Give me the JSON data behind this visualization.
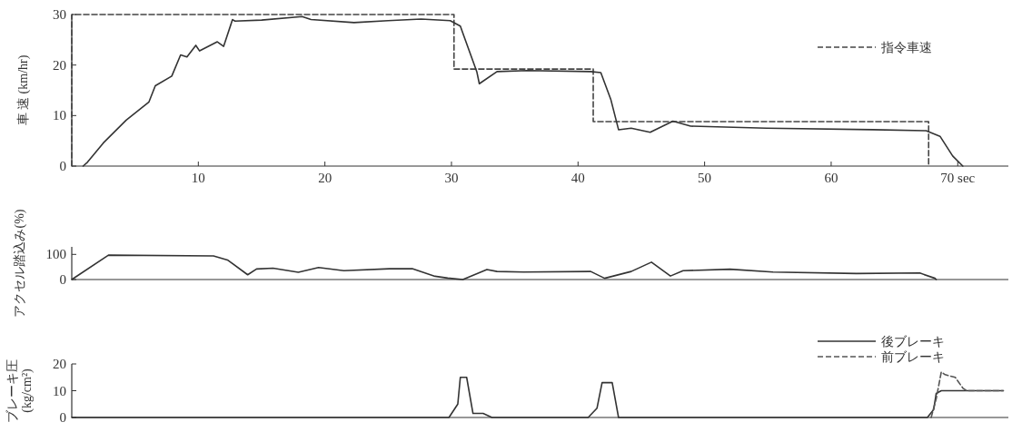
{
  "chart_data": [
    {
      "type": "line",
      "ylabel": "車 速 (km/hr)",
      "xlim": [
        0,
        74
      ],
      "ylim": [
        0,
        30
      ],
      "xticks": [
        10,
        20,
        30,
        40,
        50,
        60,
        {
          "value": 70,
          "label": "70 sec"
        }
      ],
      "yticks": [
        0,
        10,
        20,
        30
      ],
      "legend": "top right",
      "marker": "none",
      "grid": false,
      "series": [
        {
          "name": "指令車速",
          "color": "#444444",
          "line_style": "dashed",
          "x": [
            0,
            0,
            30.2,
            30.2,
            41.2,
            41.2,
            67.7,
            67.7
          ],
          "values": [
            0,
            30,
            30,
            19.2,
            19.2,
            8.8,
            8.8,
            0
          ]
        },
        {
          "color": "#333333",
          "line_style": "solid",
          "x": [
            0.9,
            1.25,
            2.5,
            4.3,
            6.1,
            6.6,
            7.9,
            8.6,
            9.1,
            9.8,
            10.1,
            11.5,
            12.0,
            12.7,
            12.9,
            15.0,
            18.2,
            18.9,
            22.3,
            25.0,
            27.6,
            29.9,
            30.7,
            32.0,
            32.2,
            33.6,
            36.0,
            41.0,
            41.8,
            42.6,
            43.2,
            44.2,
            45.7,
            47.5,
            48.9,
            54.9,
            63.3,
            67.5,
            68.6,
            69.6,
            70.4
          ],
          "values": [
            0,
            0.8,
            4.6,
            9.1,
            12.7,
            15.9,
            17.8,
            22.0,
            21.6,
            23.9,
            22.8,
            24.6,
            23.7,
            29.0,
            28.7,
            28.9,
            29.6,
            29.0,
            28.4,
            28.8,
            29.1,
            28.8,
            27.7,
            18.7,
            16.3,
            18.7,
            18.9,
            18.7,
            18.5,
            13.1,
            7.2,
            7.5,
            6.7,
            8.9,
            7.9,
            7.5,
            7.2,
            7.0,
            5.9,
            2.0,
            0
          ]
        }
      ]
    },
    {
      "type": "line",
      "ylabel": "アクセル踏込み(%)",
      "xlim": [
        0,
        74
      ],
      "ylim": [
        0,
        130
      ],
      "yticks": [
        0,
        100
      ],
      "tick_labels": "y",
      "marker": "none",
      "grid": false,
      "series": [
        {
          "color": "#333333",
          "line_style": "solid",
          "x": [
            0,
            2.9,
            11.2,
            12.3,
            13.9,
            14.6,
            15.9,
            17.9,
            19.5,
            21.5,
            25.1,
            26.9,
            28.7,
            29.7,
            30.9,
            32.8,
            33.6,
            35.7,
            41.0,
            42.1,
            44.2,
            45.8,
            47.3,
            48.3,
            52.0,
            55.4,
            62.0,
            67.0,
            68.2,
            68.3
          ],
          "values": [
            0,
            97,
            94,
            78,
            19,
            42,
            45,
            29,
            48,
            35,
            43,
            43,
            13,
            6,
            0,
            40,
            32,
            30,
            32,
            5,
            32,
            69,
            14,
            35,
            41,
            30,
            24,
            26,
            5,
            0
          ]
        }
      ]
    },
    {
      "type": "line",
      "ylabel": "ブレーキ圧\n(kg/cm²)",
      "xlim": [
        0,
        74
      ],
      "ylim": [
        0,
        20
      ],
      "yticks": [
        0,
        10,
        20
      ],
      "tick_labels": "y",
      "legend": "top right",
      "marker": "none",
      "grid": false,
      "series": [
        {
          "name": "後ブレーキ",
          "color": "#333333",
          "line_style": "solid",
          "x": [
            0,
            29.8,
            30.5,
            30.7,
            31.2,
            31.7,
            32.5,
            33.2,
            40.8,
            41.5,
            41.9,
            42.7,
            43.2,
            67.6,
            68.1,
            68.3,
            68.7,
            73.6
          ],
          "values": [
            0,
            0,
            5,
            15,
            15,
            1.5,
            1.5,
            0,
            0,
            3.5,
            13,
            13,
            0,
            0,
            3,
            9,
            10,
            10
          ]
        },
        {
          "name": "前ブレーキ",
          "color": "#555555",
          "line_style": "dashed",
          "x": [
            67.9,
            68.3,
            68.7,
            69.0,
            69.8,
            70.4,
            70.7,
            73.6
          ],
          "values": [
            0,
            7,
            17,
            16,
            15,
            11,
            10,
            10
          ]
        }
      ]
    }
  ]
}
